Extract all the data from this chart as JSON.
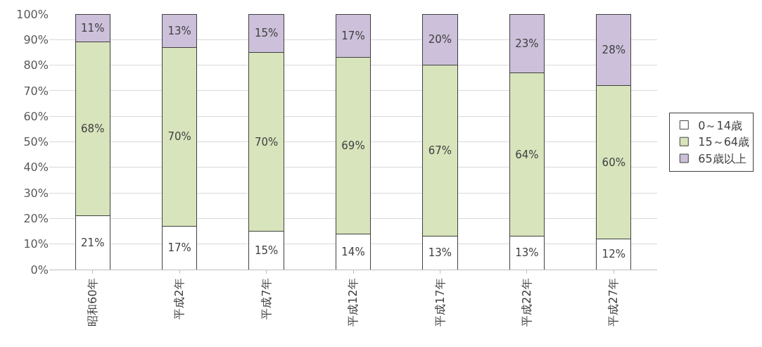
{
  "chart_data": {
    "type": "bar",
    "stacked": true,
    "categories": [
      "昭和60年",
      "平成2年",
      "平成7年",
      "平成12年",
      "平成17年",
      "平成22年",
      "平成27年"
    ],
    "series": [
      {
        "name": "0～14歳",
        "color": "#ffffff",
        "values": [
          21,
          17,
          15,
          14,
          13,
          13,
          12
        ]
      },
      {
        "name": "15～64歳",
        "color": "#d8e4bc",
        "values": [
          68,
          70,
          70,
          69,
          67,
          64,
          60
        ]
      },
      {
        "name": "65歳以上",
        "color": "#ccc0da",
        "values": [
          11,
          13,
          15,
          17,
          20,
          23,
          28
        ]
      }
    ],
    "value_labels": [
      [
        "21%",
        "17%",
        "15%",
        "14%",
        "13%",
        "13%",
        "12%"
      ],
      [
        "68%",
        "70%",
        "70%",
        "69%",
        "67%",
        "64%",
        "60%"
      ],
      [
        "11%",
        "13%",
        "15%",
        "17%",
        "20%",
        "23%",
        "28%"
      ]
    ],
    "ylim": [
      0,
      100
    ],
    "yticks": [
      {
        "value": 0,
        "label": "0%"
      },
      {
        "value": 10,
        "label": "10%"
      },
      {
        "value": 20,
        "label": "20%"
      },
      {
        "value": 30,
        "label": "30%"
      },
      {
        "value": 40,
        "label": "40%"
      },
      {
        "value": 50,
        "label": "50%"
      },
      {
        "value": 60,
        "label": "60%"
      },
      {
        "value": 70,
        "label": "70%"
      },
      {
        "value": 80,
        "label": "80%"
      },
      {
        "value": 90,
        "label": "90%"
      },
      {
        "value": 100,
        "label": "100%"
      }
    ],
    "grid": "y",
    "legend": "right"
  }
}
